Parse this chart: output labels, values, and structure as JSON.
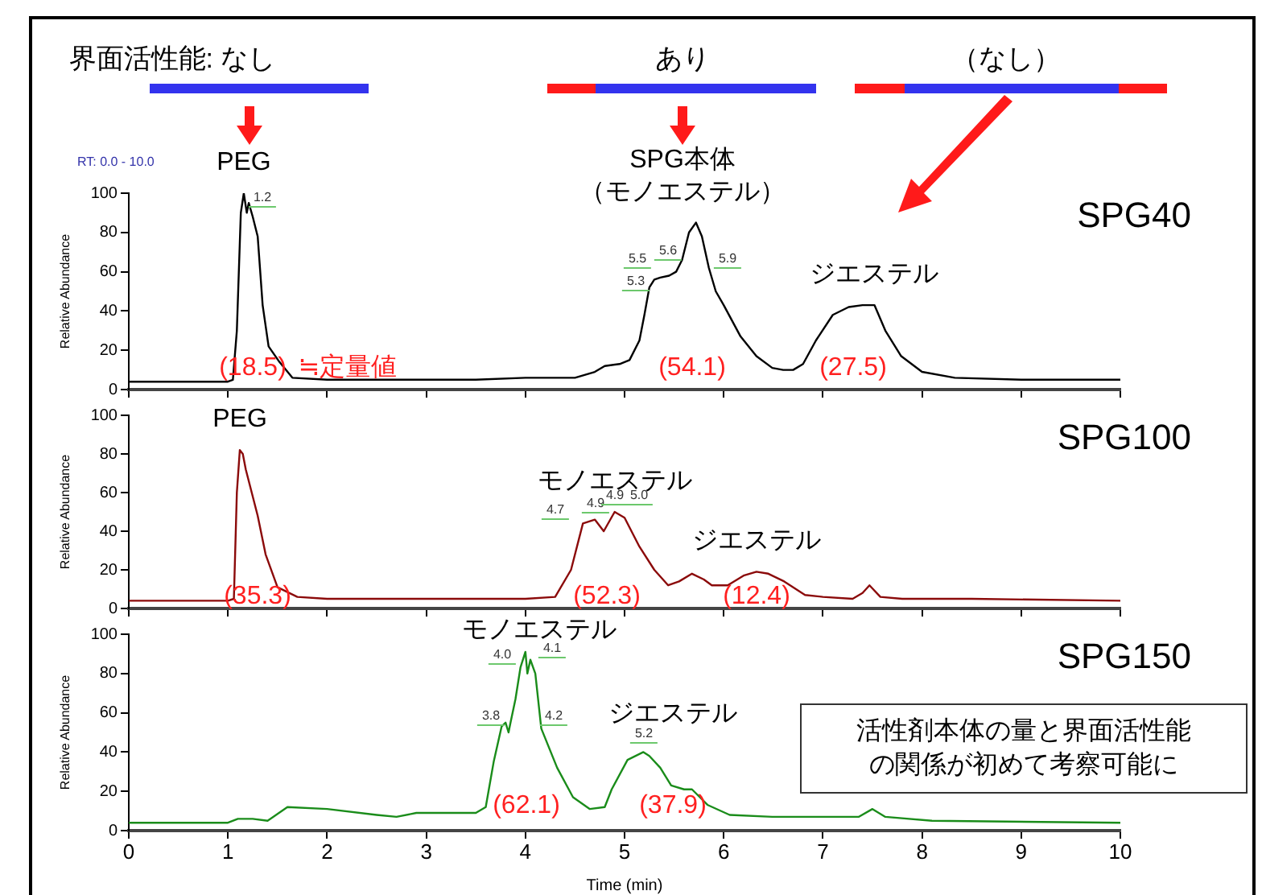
{
  "chart_data": [
    {
      "type": "line",
      "title": "SPG40",
      "ylabel": "Relative Abundance",
      "xlim": [
        0,
        10
      ],
      "xticks": [
        0,
        1,
        2,
        3,
        4,
        5,
        6,
        7,
        8,
        9,
        10
      ],
      "ylim": [
        0,
        100
      ],
      "yticks": [
        0,
        20,
        40,
        60,
        80,
        100
      ],
      "tick_labels": "y",
      "marker": "none",
      "x": [
        0,
        0.5,
        1.0,
        1.05,
        1.09,
        1.13,
        1.16,
        1.19,
        1.21,
        1.25,
        1.3,
        1.35,
        1.41,
        1.52,
        1.65,
        2.0,
        2.5,
        3.0,
        3.5,
        4.0,
        4.3,
        4.5,
        4.7,
        4.8,
        4.95,
        5.05,
        5.15,
        5.2,
        5.25,
        5.3,
        5.36,
        5.45,
        5.52,
        5.58,
        5.65,
        5.72,
        5.78,
        5.85,
        5.92,
        6.0,
        6.17,
        6.33,
        6.49,
        6.6,
        6.7,
        6.8,
        6.93,
        7.1,
        7.26,
        7.4,
        7.52,
        7.63,
        7.79,
        8.0,
        8.33,
        9.0,
        10.0
      ],
      "series": [
        {
          "color": "#000000",
          "values": [
            4,
            4,
            4,
            5,
            30,
            90,
            100,
            90,
            95,
            88,
            78,
            43,
            22,
            14,
            6,
            5,
            5,
            5,
            5,
            6,
            6,
            6,
            9,
            12,
            13,
            15,
            25,
            38,
            52,
            56,
            57,
            58,
            60,
            66,
            80,
            85,
            78,
            62,
            50,
            43,
            27,
            17,
            11,
            10,
            10,
            13,
            25,
            38,
            42,
            43,
            43,
            30,
            17,
            9,
            6,
            5,
            5
          ]
        }
      ],
      "annotations": [
        "界面活性能: なし",
        "あり",
        "（なし）",
        "RT: 0.0 - 10.0",
        "1.2",
        "5.3",
        "5.5",
        "5.6",
        "5.9",
        "(18.5)",
        "≒定量値",
        "(54.1)",
        "(27.5)",
        "SPG本体",
        "（モノエステル）",
        {
          "text": "PEG",
          "x": 1.16,
          "y": 100
        },
        {
          "text": "ジエステル",
          "x": 7.52,
          "y": 43
        }
      ]
    },
    {
      "type": "line",
      "title": "SPG100",
      "ylabel": "Relative Abundance",
      "xlim": [
        0,
        10
      ],
      "xticks": [
        0,
        1,
        2,
        3,
        4,
        5,
        6,
        7,
        8,
        9,
        10
      ],
      "ylim": [
        0,
        100
      ],
      "yticks": [
        0,
        20,
        40,
        60,
        80,
        100
      ],
      "tick_labels": "y",
      "marker": "none",
      "x": [
        0,
        1.0,
        1.06,
        1.09,
        1.12,
        1.15,
        1.18,
        1.3,
        1.38,
        1.5,
        1.7,
        2.0,
        3.0,
        4.0,
        4.3,
        4.46,
        4.58,
        4.7,
        4.79,
        4.9,
        5.0,
        5.15,
        5.3,
        5.44,
        5.55,
        5.68,
        5.8,
        5.88,
        6.04,
        6.2,
        6.33,
        6.45,
        6.61,
        6.82,
        7.0,
        7.3,
        7.4,
        7.47,
        7.58,
        7.8,
        8.5,
        10.0
      ],
      "series": [
        {
          "color": "#8b0a0a",
          "values": [
            4,
            4,
            5,
            60,
            82,
            80,
            72,
            48,
            28,
            11,
            6,
            5,
            5,
            5,
            6,
            20,
            44,
            46,
            40,
            50,
            47,
            32,
            20,
            12,
            14,
            18,
            15,
            12,
            12,
            17,
            19,
            18,
            14,
            7,
            6,
            5,
            8,
            12,
            6,
            5,
            5,
            4
          ]
        }
      ],
      "annotations": [
        "4.7",
        "4.9",
        "4.9",
        "5.0",
        "(35.3)",
        "(52.3)",
        "(12.4)",
        {
          "text": "PEG",
          "x": 1.12,
          "y": 82
        },
        {
          "text": "モノエステル",
          "x": 4.9,
          "y": 50
        },
        {
          "text": "ジエステル",
          "x": 6.33,
          "y": 19
        }
      ]
    },
    {
      "type": "line",
      "title": "SPG150",
      "xlabel": "Time (min)",
      "ylabel": "Relative Abundance",
      "xlim": [
        0,
        10
      ],
      "xticks": [
        0,
        1,
        2,
        3,
        4,
        5,
        6,
        7,
        8,
        9,
        10
      ],
      "ylim": [
        0,
        100
      ],
      "yticks": [
        0,
        20,
        40,
        60,
        80,
        100
      ],
      "marker": "none",
      "x": [
        0,
        1.0,
        1.1,
        1.25,
        1.4,
        1.6,
        2.0,
        2.5,
        2.7,
        2.9,
        3.5,
        3.6,
        3.68,
        3.76,
        3.8,
        3.83,
        3.85,
        3.9,
        3.95,
        4.0,
        4.02,
        4.05,
        4.1,
        4.16,
        4.32,
        4.48,
        4.65,
        4.8,
        4.87,
        5.03,
        5.19,
        5.25,
        5.36,
        5.47,
        5.6,
        5.68,
        5.84,
        6.06,
        6.49,
        7.36,
        7.5,
        7.63,
        8.1,
        10.0
      ],
      "series": [
        {
          "color": "#1a8c1a",
          "values": [
            4,
            4,
            6,
            6,
            5,
            12,
            11,
            8,
            7,
            9,
            9,
            12,
            35,
            53,
            55,
            50,
            55,
            67,
            83,
            91,
            80,
            87,
            80,
            52,
            32,
            17,
            11,
            12,
            21,
            36,
            40,
            38,
            32,
            23,
            21,
            21,
            13,
            8,
            7,
            7,
            11,
            7,
            5,
            4
          ]
        }
      ],
      "annotations": [
        "活性剤本体の量と界面活性能の関係が初めて考察可能に",
        "モノエステル",
        "ジエステル",
        "3.8",
        "4.0",
        "4.1",
        "4.2",
        "5.2",
        "(62.1)",
        "(37.9)"
      ]
    }
  ]
}
